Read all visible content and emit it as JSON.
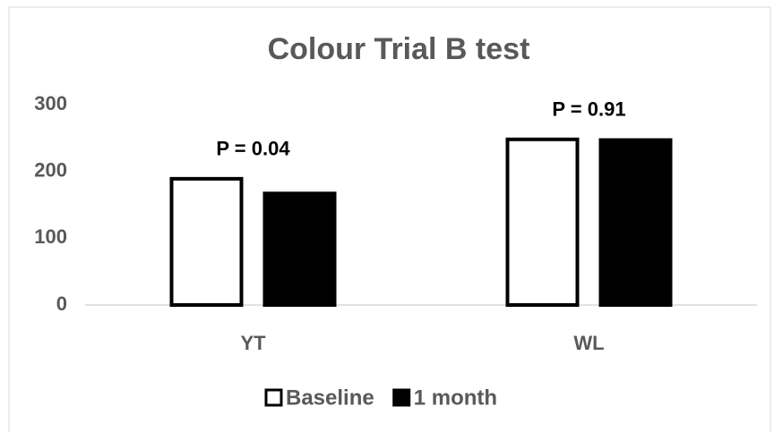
{
  "chart_data": {
    "type": "bar",
    "title": "Colour Trial B test",
    "categories": [
      "YT",
      "WL"
    ],
    "series": [
      {
        "name": "Baseline",
        "color": "#ffffff",
        "edgecolor": "#000000",
        "values": [
          189,
          248
        ]
      },
      {
        "name": "1 month",
        "color": "#000000",
        "edgecolor": "#000000",
        "values": [
          167,
          247
        ]
      }
    ],
    "annotations": [
      "P = 0.04",
      "P = 0.91"
    ],
    "ylim": [
      0,
      300
    ],
    "yticks": [
      0,
      100,
      200,
      300
    ],
    "grid": false,
    "legend": "bottom"
  }
}
